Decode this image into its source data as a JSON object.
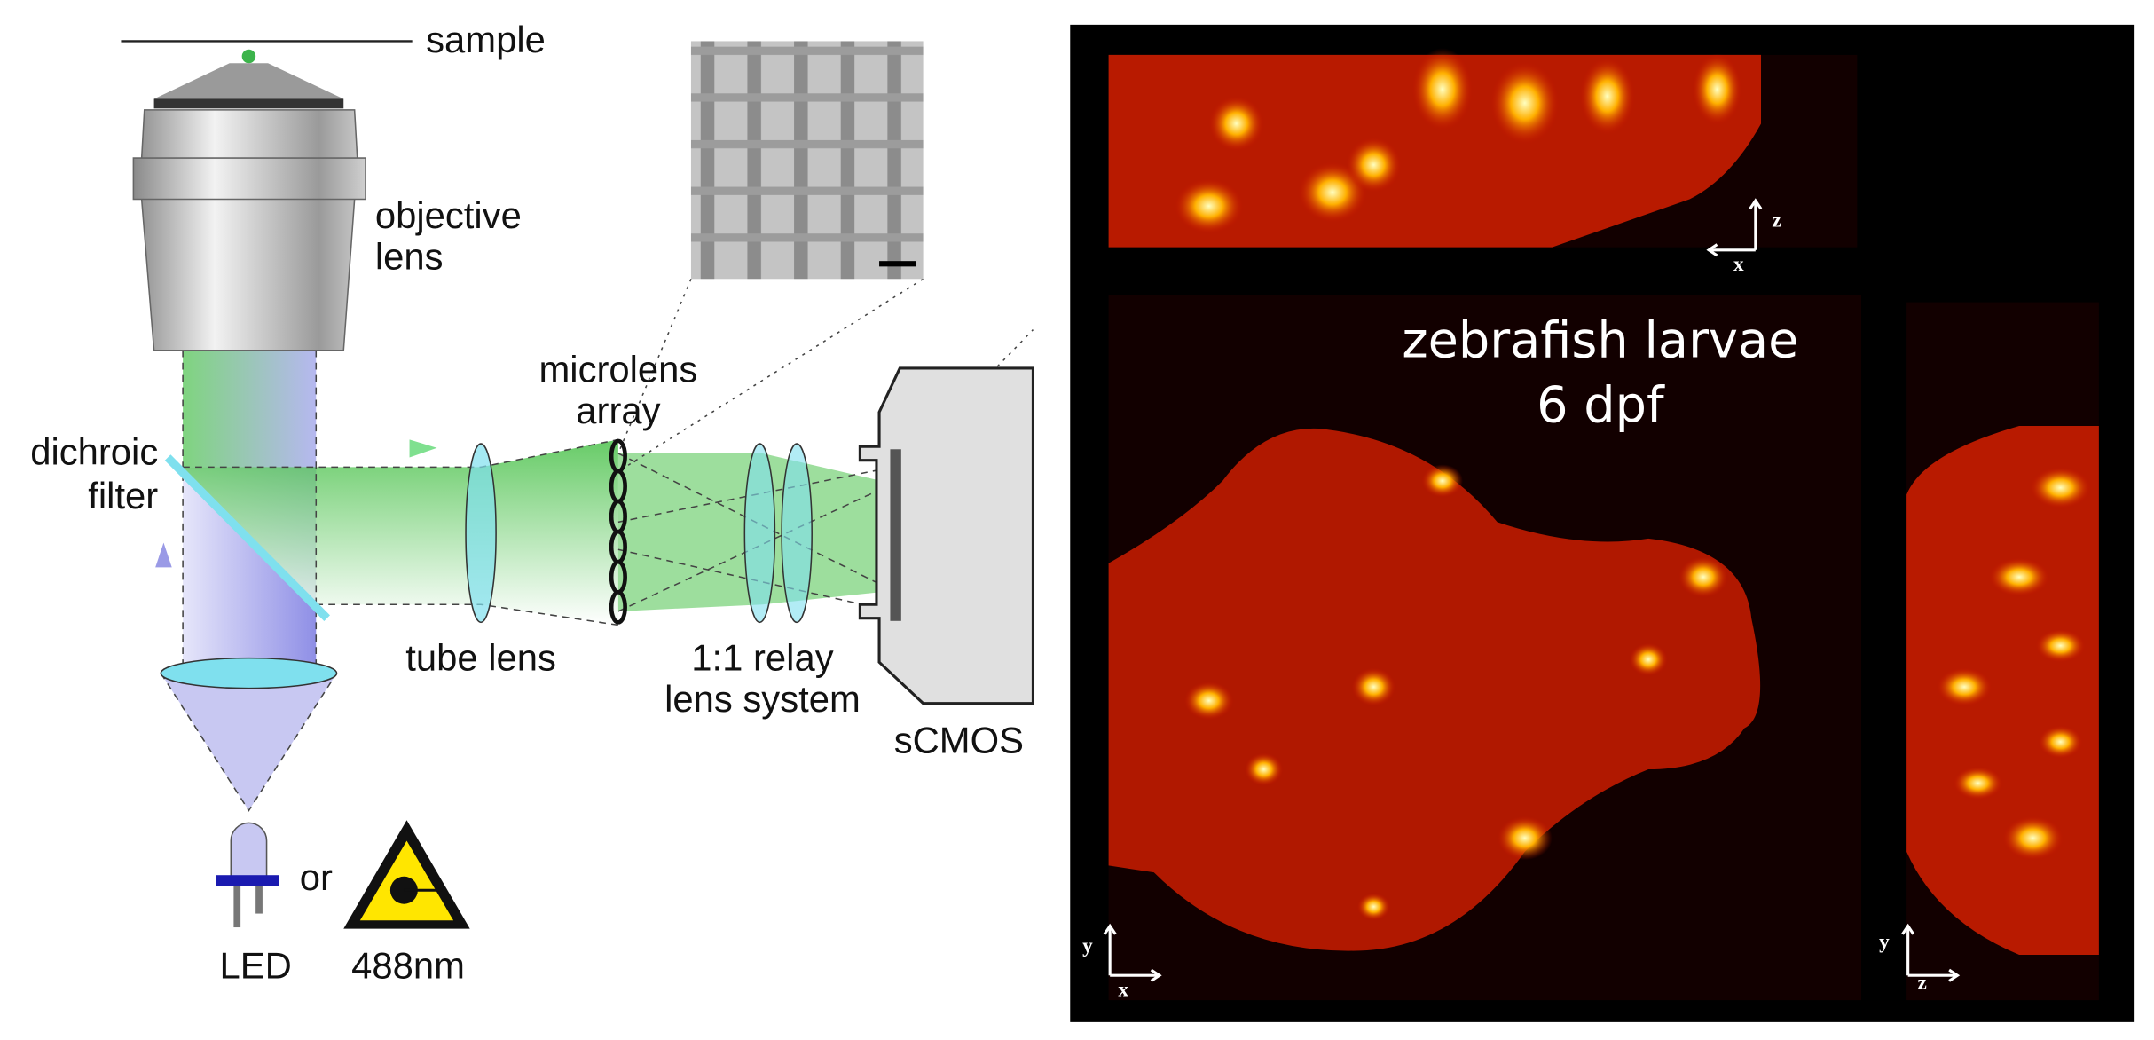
{
  "optics": {
    "sample": "sample",
    "objective": [
      "objective",
      "lens"
    ],
    "dichroic": [
      "dichroic",
      "filter"
    ],
    "microlens": [
      "microlens",
      "array"
    ],
    "tube_lens": "tube lens",
    "relay": [
      "1:1 relay",
      "lens system"
    ],
    "camera": "sCMOS",
    "led": "LED",
    "or": "or",
    "laser": "488nm"
  },
  "imaging": {
    "title": [
      "zebrafish larvae",
      "6 dpf"
    ],
    "xz_axes": [
      "z",
      "x"
    ],
    "xy_axes": [
      "y",
      "x"
    ],
    "yz_axes": [
      "y",
      "z"
    ]
  }
}
